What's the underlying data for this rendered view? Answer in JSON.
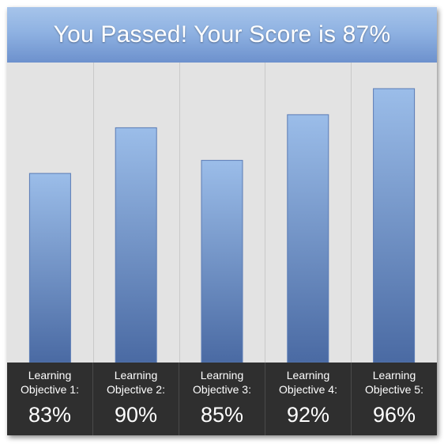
{
  "header": {
    "title": "You Passed! Your Score is 87%"
  },
  "chart_data": {
    "type": "bar",
    "categories": [
      "Learning Objective 1:",
      "Learning Objective 2:",
      "Learning Objective 3:",
      "Learning Objective 4:",
      "Learning Objective 5:"
    ],
    "values": [
      83,
      90,
      85,
      92,
      96
    ],
    "value_labels": [
      "83%",
      "90%",
      "85%",
      "92%",
      "96%"
    ],
    "ylim": [
      54,
      100
    ],
    "grid": "vertical separators",
    "legend": "none"
  },
  "colors": {
    "bar_top": "#9bbde9",
    "bar_bottom": "#4a6aa3",
    "header_top": "#a6c4ea",
    "header_bottom": "#6d91cd",
    "plot_bg": "#e3e3e3",
    "footer_bg": "#2f2f2f",
    "separator": "#c9c9c9"
  }
}
